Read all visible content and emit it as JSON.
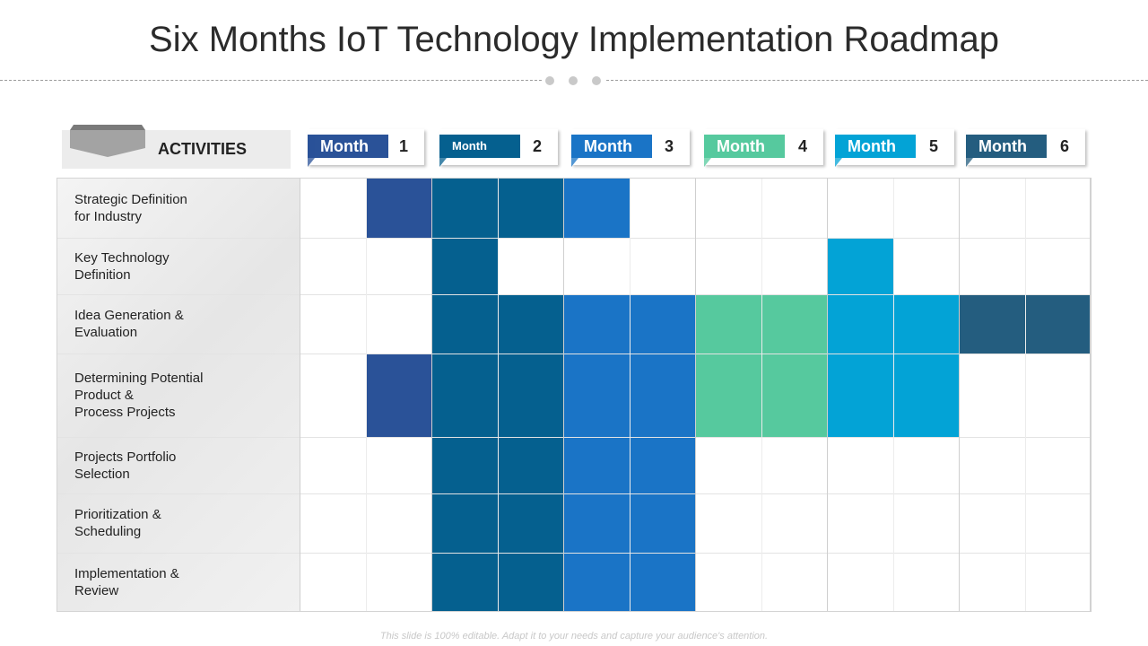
{
  "title": "Six Months IoT Technology Implementation Roadmap",
  "activities_label": "ACTIVITIES",
  "months": [
    {
      "label": "Month",
      "number": "1",
      "color": "#2a5298",
      "small": false
    },
    {
      "label": "Month",
      "number": "2",
      "color": "#05608f",
      "small": true
    },
    {
      "label": "Month",
      "number": "3",
      "color": "#1a74c6",
      "small": false
    },
    {
      "label": "Month",
      "number": "4",
      "color": "#56c99e",
      "small": false
    },
    {
      "label": "Month",
      "number": "5",
      "color": "#03a3d6",
      "small": false
    },
    {
      "label": "Month",
      "number": "6",
      "color": "#245d7f",
      "small": false
    }
  ],
  "activities": [
    {
      "label": "Strategic Definition\nfor Industry",
      "cells": [
        2,
        3,
        4,
        5
      ]
    },
    {
      "label": "Key Technology\nDefinition",
      "cells": [
        3,
        9
      ]
    },
    {
      "label": "Idea Generation  &\nEvaluation",
      "cells": [
        3,
        4,
        5,
        6,
        7,
        8,
        9,
        10,
        11,
        12
      ]
    },
    {
      "label": "Determining Potential\nProduct &\nProcess Projects",
      "cells": [
        2,
        3,
        4,
        5,
        6,
        7,
        8,
        9,
        10
      ]
    },
    {
      "label": "Projects Portfolio\nSelection",
      "cells": [
        3,
        4,
        5,
        6
      ]
    },
    {
      "label": "Prioritization &\nScheduling",
      "cells": [
        3,
        4,
        5,
        6
      ]
    },
    {
      "label": "Implementation  &\nReview",
      "cells": [
        3,
        4,
        5,
        6
      ]
    }
  ],
  "cell_colors": {
    "1": "#2a5298",
    "2": "#2a5298",
    "3": "#05608f",
    "4": "#05608f",
    "5": "#1a74c6",
    "6": "#1a74c6",
    "7": "#56c99e",
    "8": "#56c99e",
    "9": "#03a3d6",
    "10": "#03a3d6",
    "11": "#245d7f",
    "12": "#245d7f"
  },
  "footer": "This slide is 100% editable. Adapt it to your needs and capture your audience's attention."
}
